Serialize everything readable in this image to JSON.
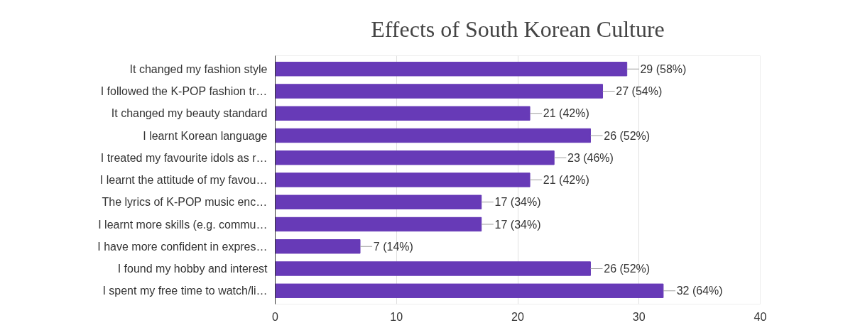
{
  "chart_data": {
    "type": "bar",
    "orientation": "horizontal",
    "title": "Effects of South Korean Culture",
    "categories": [
      "It changed my fashion style",
      "I followed the K-POP fashion tr…",
      "It changed my beauty standard",
      "I learnt Korean language",
      "I treated my favourite idols as r…",
      "I learnt the attitude of my favou…",
      "The lyrics of K-POP music enc…",
      "I learnt more skills (e.g. commu…",
      "I have more confident in expres…",
      "I found my hobby and interest",
      "I spent my free time to watch/li…"
    ],
    "values": [
      29,
      27,
      21,
      26,
      23,
      21,
      17,
      17,
      7,
      26,
      32
    ],
    "value_labels": [
      "29 (58%)",
      "27 (54%)",
      "21 (42%)",
      "26 (52%)",
      "23 (46%)",
      "21 (42%)",
      "17 (34%)",
      "17 (34%)",
      "7 (14%)",
      "26 (52%)",
      "32 (64%)"
    ],
    "color": "#673ab7",
    "xlim": [
      0,
      40
    ],
    "xticks": [
      0,
      10,
      20,
      30,
      40
    ],
    "grid": "x"
  }
}
